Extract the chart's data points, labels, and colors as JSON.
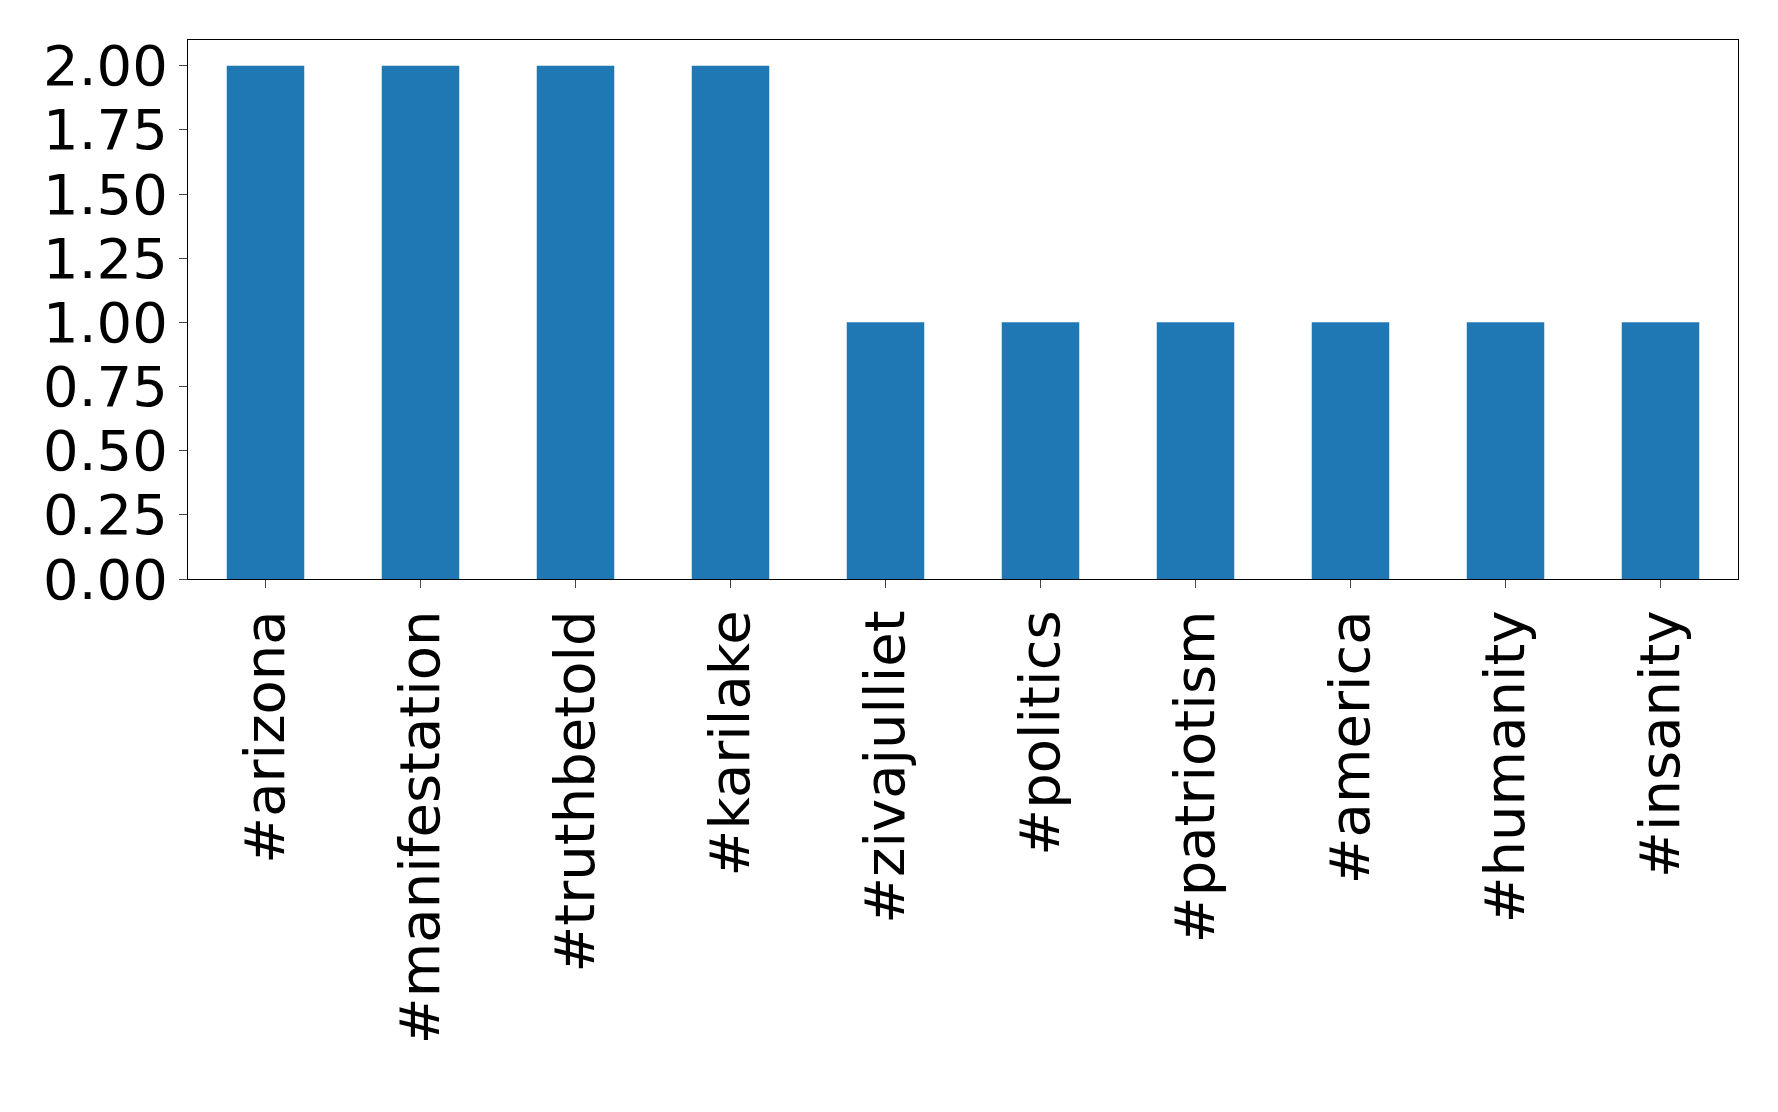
{
  "chart_data": {
    "type": "bar",
    "categories": [
      "#arizona",
      "#manifestation",
      "#truthbetold",
      "#karilake",
      "#zivajulliet",
      "#politics",
      "#patriotism",
      "#america",
      "#humanity",
      "#insanity"
    ],
    "values": [
      2,
      2,
      2,
      2,
      1,
      1,
      1,
      1,
      1,
      1
    ],
    "color": "#1f77b4",
    "ylim": [
      0,
      2.1
    ],
    "yticks": [
      {
        "value": 0,
        "label": "0.00"
      },
      {
        "value": 0.25,
        "label": "0.25"
      },
      {
        "value": 0.5,
        "label": "0.50"
      },
      {
        "value": 0.75,
        "label": "0.75"
      },
      {
        "value": 1,
        "label": "1.00"
      },
      {
        "value": 1.25,
        "label": "1.25"
      },
      {
        "value": 1.5,
        "label": "1.50"
      },
      {
        "value": 1.75,
        "label": "1.75"
      },
      {
        "value": 2,
        "label": "2.00"
      }
    ],
    "grid": false
  }
}
